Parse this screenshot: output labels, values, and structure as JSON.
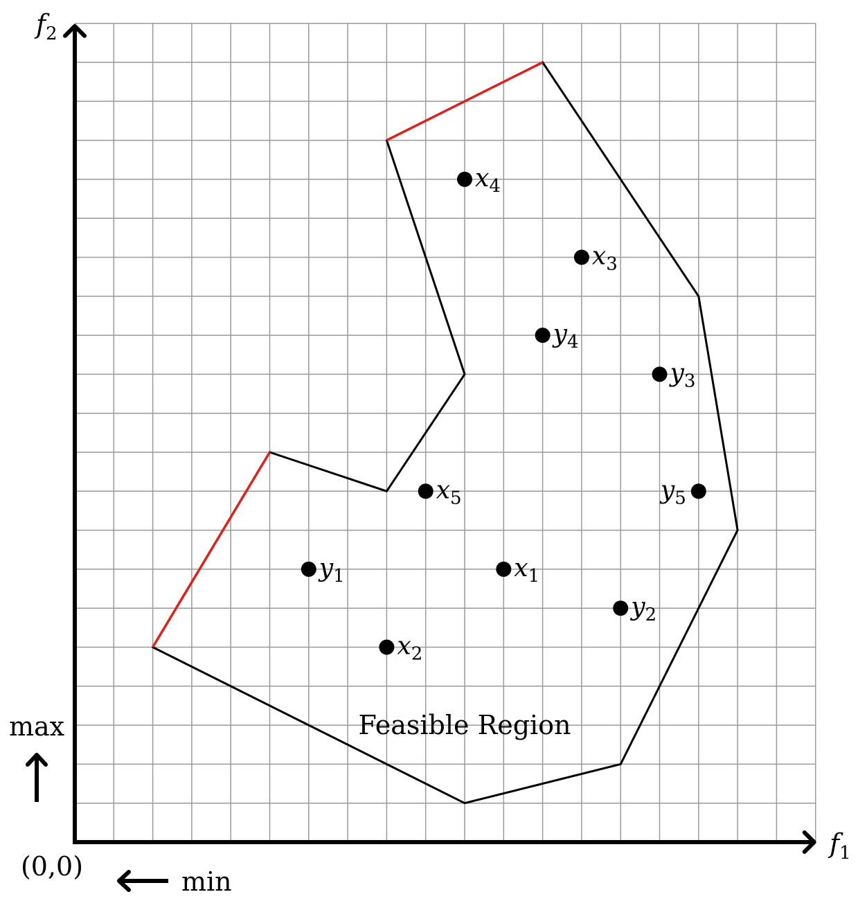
{
  "chart_data": {
    "type": "diagram",
    "axes": {
      "x_label": "f",
      "x_label_sub": "1",
      "y_label": "f",
      "y_label_sub": "2",
      "origin_label": "(0,0)",
      "x_range": [
        0,
        19
      ],
      "y_range": [
        0,
        21
      ],
      "grid": true
    },
    "direction_labels": {
      "max_label": "max",
      "min_label": "min"
    },
    "region": {
      "label": "Feasible Region",
      "label_pos": [
        10,
        3
      ],
      "polygon": [
        [
          10,
          1
        ],
        [
          14,
          2
        ],
        [
          17,
          8
        ],
        [
          16,
          14
        ],
        [
          12,
          20
        ],
        [
          8,
          18
        ],
        [
          10,
          12
        ],
        [
          8,
          9
        ],
        [
          5,
          10
        ],
        [
          2,
          5
        ]
      ],
      "pareto_segments": [
        [
          [
            8,
            18
          ],
          [
            12,
            20
          ]
        ],
        [
          [
            2,
            5
          ],
          [
            5,
            10
          ]
        ]
      ]
    },
    "points": [
      {
        "name": "x",
        "sub": "1",
        "x": 11,
        "y": 7,
        "label_side": "right"
      },
      {
        "name": "x",
        "sub": "2",
        "x": 8,
        "y": 5,
        "label_side": "right"
      },
      {
        "name": "x",
        "sub": "3",
        "x": 13,
        "y": 15,
        "label_side": "right"
      },
      {
        "name": "x",
        "sub": "4",
        "x": 10,
        "y": 17,
        "label_side": "right"
      },
      {
        "name": "x",
        "sub": "5",
        "x": 9,
        "y": 9,
        "label_side": "right"
      },
      {
        "name": "y",
        "sub": "1",
        "x": 6,
        "y": 7,
        "label_side": "right"
      },
      {
        "name": "y",
        "sub": "2",
        "x": 14,
        "y": 6,
        "label_side": "right"
      },
      {
        "name": "y",
        "sub": "3",
        "x": 15,
        "y": 12,
        "label_side": "right"
      },
      {
        "name": "y",
        "sub": "4",
        "x": 12,
        "y": 13,
        "label_side": "right"
      },
      {
        "name": "y",
        "sub": "5",
        "x": 16,
        "y": 9,
        "label_side": "left"
      }
    ],
    "colors": {
      "grid": "#9a9a9a",
      "axis": "#000000",
      "boundary": "#000000",
      "pareto": "#e0201b",
      "point": "#000000"
    }
  }
}
